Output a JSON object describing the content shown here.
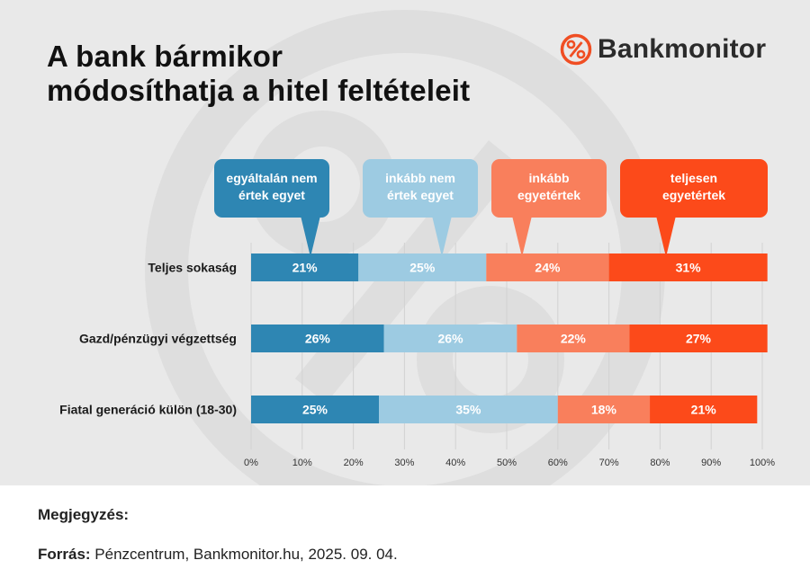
{
  "header": {
    "title_line1": "A bank bármikor",
    "title_line2": "módosíthatja a hitel feltételeit",
    "brand": "Bankmonitor",
    "brand_icon": "percent-circle-icon"
  },
  "chart_data": {
    "type": "bar",
    "stacked": true,
    "orientation": "horizontal",
    "percent_scale": true,
    "categories": [
      "Teljes sokaság",
      "Gazd/pénzügyi végzettség",
      "Fiatal generáció külön (18-30)"
    ],
    "series": [
      {
        "name": "egyáltalán nem értek egyet",
        "name_lines": [
          "egyáltalán nem",
          "értek egyet"
        ],
        "color": "#2e86b3",
        "values": [
          21,
          26,
          25
        ]
      },
      {
        "name": "inkább nem értek egyet",
        "name_lines": [
          "inkább nem",
          "értek egyet"
        ],
        "color": "#9dcbe2",
        "values": [
          25,
          26,
          35
        ]
      },
      {
        "name": "inkább egyetértek",
        "name_lines": [
          "inkább",
          "egyetértek"
        ],
        "color": "#f97f5c",
        "values": [
          24,
          22,
          18
        ]
      },
      {
        "name": "teljesen egyetértek",
        "name_lines": [
          "teljesen",
          "egyetértek"
        ],
        "color": "#fc4a1a",
        "values": [
          31,
          27,
          21
        ]
      }
    ],
    "xlim": [
      0,
      100
    ],
    "xticks": [
      "0%",
      "10%",
      "20%",
      "30%",
      "40%",
      "50%",
      "60%",
      "70%",
      "80%",
      "90%",
      "100%"
    ],
    "grid": true,
    "legend": "top, callout bubbles above first bar"
  },
  "footer": {
    "note_label": "Megjegyzés:",
    "source_label": "Forrás:",
    "source_text": " Pénzcentrum, Bankmonitor.hu, 2025. 09. 04."
  }
}
